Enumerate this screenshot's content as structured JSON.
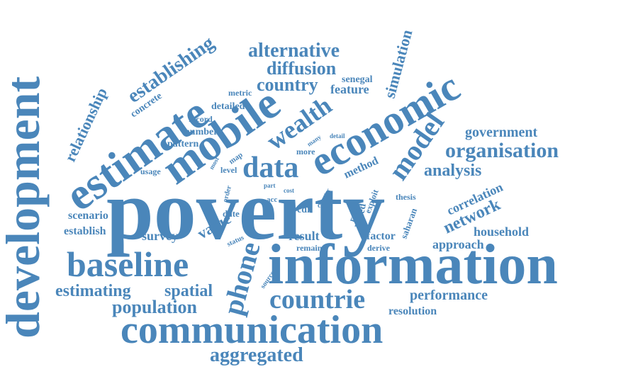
{
  "color": "#4a86ba",
  "words": [
    {
      "text": "poverty"
    },
    {
      "text": "information"
    },
    {
      "text": "development"
    },
    {
      "text": "estimate"
    },
    {
      "text": "mobile"
    },
    {
      "text": "economic"
    },
    {
      "text": "communication"
    },
    {
      "text": "baseline"
    },
    {
      "text": "data"
    },
    {
      "text": "phone"
    },
    {
      "text": "model"
    },
    {
      "text": "countrie"
    },
    {
      "text": "organisation"
    },
    {
      "text": "wealth"
    },
    {
      "text": "aggregated"
    },
    {
      "text": "establishing"
    },
    {
      "text": "alternative"
    },
    {
      "text": "diffusion"
    },
    {
      "text": "country"
    },
    {
      "text": "population"
    },
    {
      "text": "estimating"
    },
    {
      "text": "spatial"
    },
    {
      "text": "analysis"
    },
    {
      "text": "network"
    },
    {
      "text": "government"
    },
    {
      "text": "relationship"
    },
    {
      "text": "simulation"
    },
    {
      "text": "value"
    },
    {
      "text": "performance"
    },
    {
      "text": "household"
    },
    {
      "text": "approach"
    },
    {
      "text": "correlation"
    },
    {
      "text": "feature"
    },
    {
      "text": "method"
    },
    {
      "text": "survey"
    },
    {
      "text": "result"
    },
    {
      "text": "scenario"
    },
    {
      "text": "establish"
    },
    {
      "text": "resolution"
    },
    {
      "text": "factor"
    },
    {
      "text": "detailed"
    },
    {
      "text": "number"
    },
    {
      "text": "pattern"
    },
    {
      "text": "concrete"
    },
    {
      "text": "senegal"
    },
    {
      "text": "saharan"
    },
    {
      "text": "based"
    },
    {
      "text": "recent"
    },
    {
      "text": "exploit"
    },
    {
      "text": "thesis"
    },
    {
      "text": "cdr"
    },
    {
      "text": "usage"
    },
    {
      "text": "level"
    },
    {
      "text": "map"
    },
    {
      "text": "more"
    },
    {
      "text": "many"
    },
    {
      "text": "detail"
    },
    {
      "text": "record"
    },
    {
      "text": "metric"
    },
    {
      "text": "date"
    },
    {
      "text": "remain"
    },
    {
      "text": "derive"
    },
    {
      "text": "source"
    },
    {
      "text": "status"
    },
    {
      "text": "order"
    },
    {
      "text": "acc"
    },
    {
      "text": "call"
    },
    {
      "text": "offer"
    },
    {
      "text": "part"
    },
    {
      "text": "cost"
    },
    {
      "text": "most"
    }
  ]
}
